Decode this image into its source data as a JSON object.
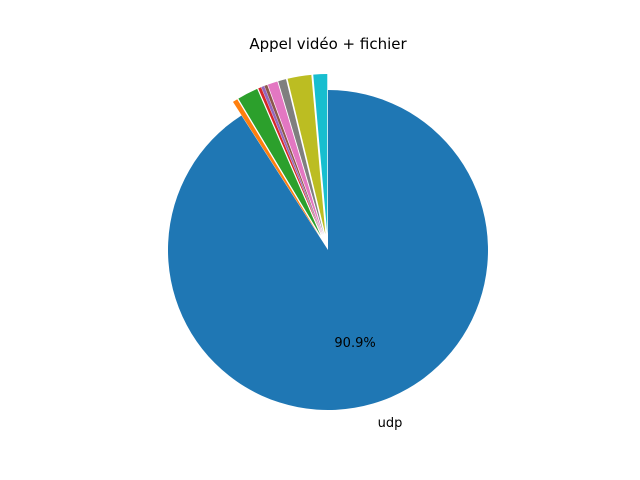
{
  "chart_data": {
    "type": "pie",
    "title": "Appel vidéo + fichier",
    "start_angle_deg": 90,
    "direction": "clockwise",
    "slices": [
      {
        "label": "udp",
        "value": 90.9,
        "color": "#1f77b4",
        "pct_label": "90.9%",
        "exploded": false
      },
      {
        "label": "",
        "value": 0.5,
        "color": "#ff7f0e",
        "pct_label": "",
        "exploded": true
      },
      {
        "label": "",
        "value": 2.1,
        "color": "#2ca02c",
        "pct_label": "",
        "exploded": true
      },
      {
        "label": "",
        "value": 0.3,
        "color": "#d62728",
        "pct_label": "",
        "exploded": true
      },
      {
        "label": "",
        "value": 0.3,
        "color": "#9467bd",
        "pct_label": "",
        "exploded": true
      },
      {
        "label": "",
        "value": 0.3,
        "color": "#8c564b",
        "pct_label": "",
        "exploded": true
      },
      {
        "label": "",
        "value": 1.0,
        "color": "#e377c2",
        "pct_label": "",
        "exploded": true
      },
      {
        "label": "",
        "value": 0.8,
        "color": "#7f7f7f",
        "pct_label": "",
        "exploded": true
      },
      {
        "label": "",
        "value": 2.4,
        "color": "#bcbd22",
        "pct_label": "",
        "exploded": true
      },
      {
        "label": "",
        "value": 1.4,
        "color": "#17becf",
        "pct_label": "",
        "exploded": true
      }
    ]
  }
}
